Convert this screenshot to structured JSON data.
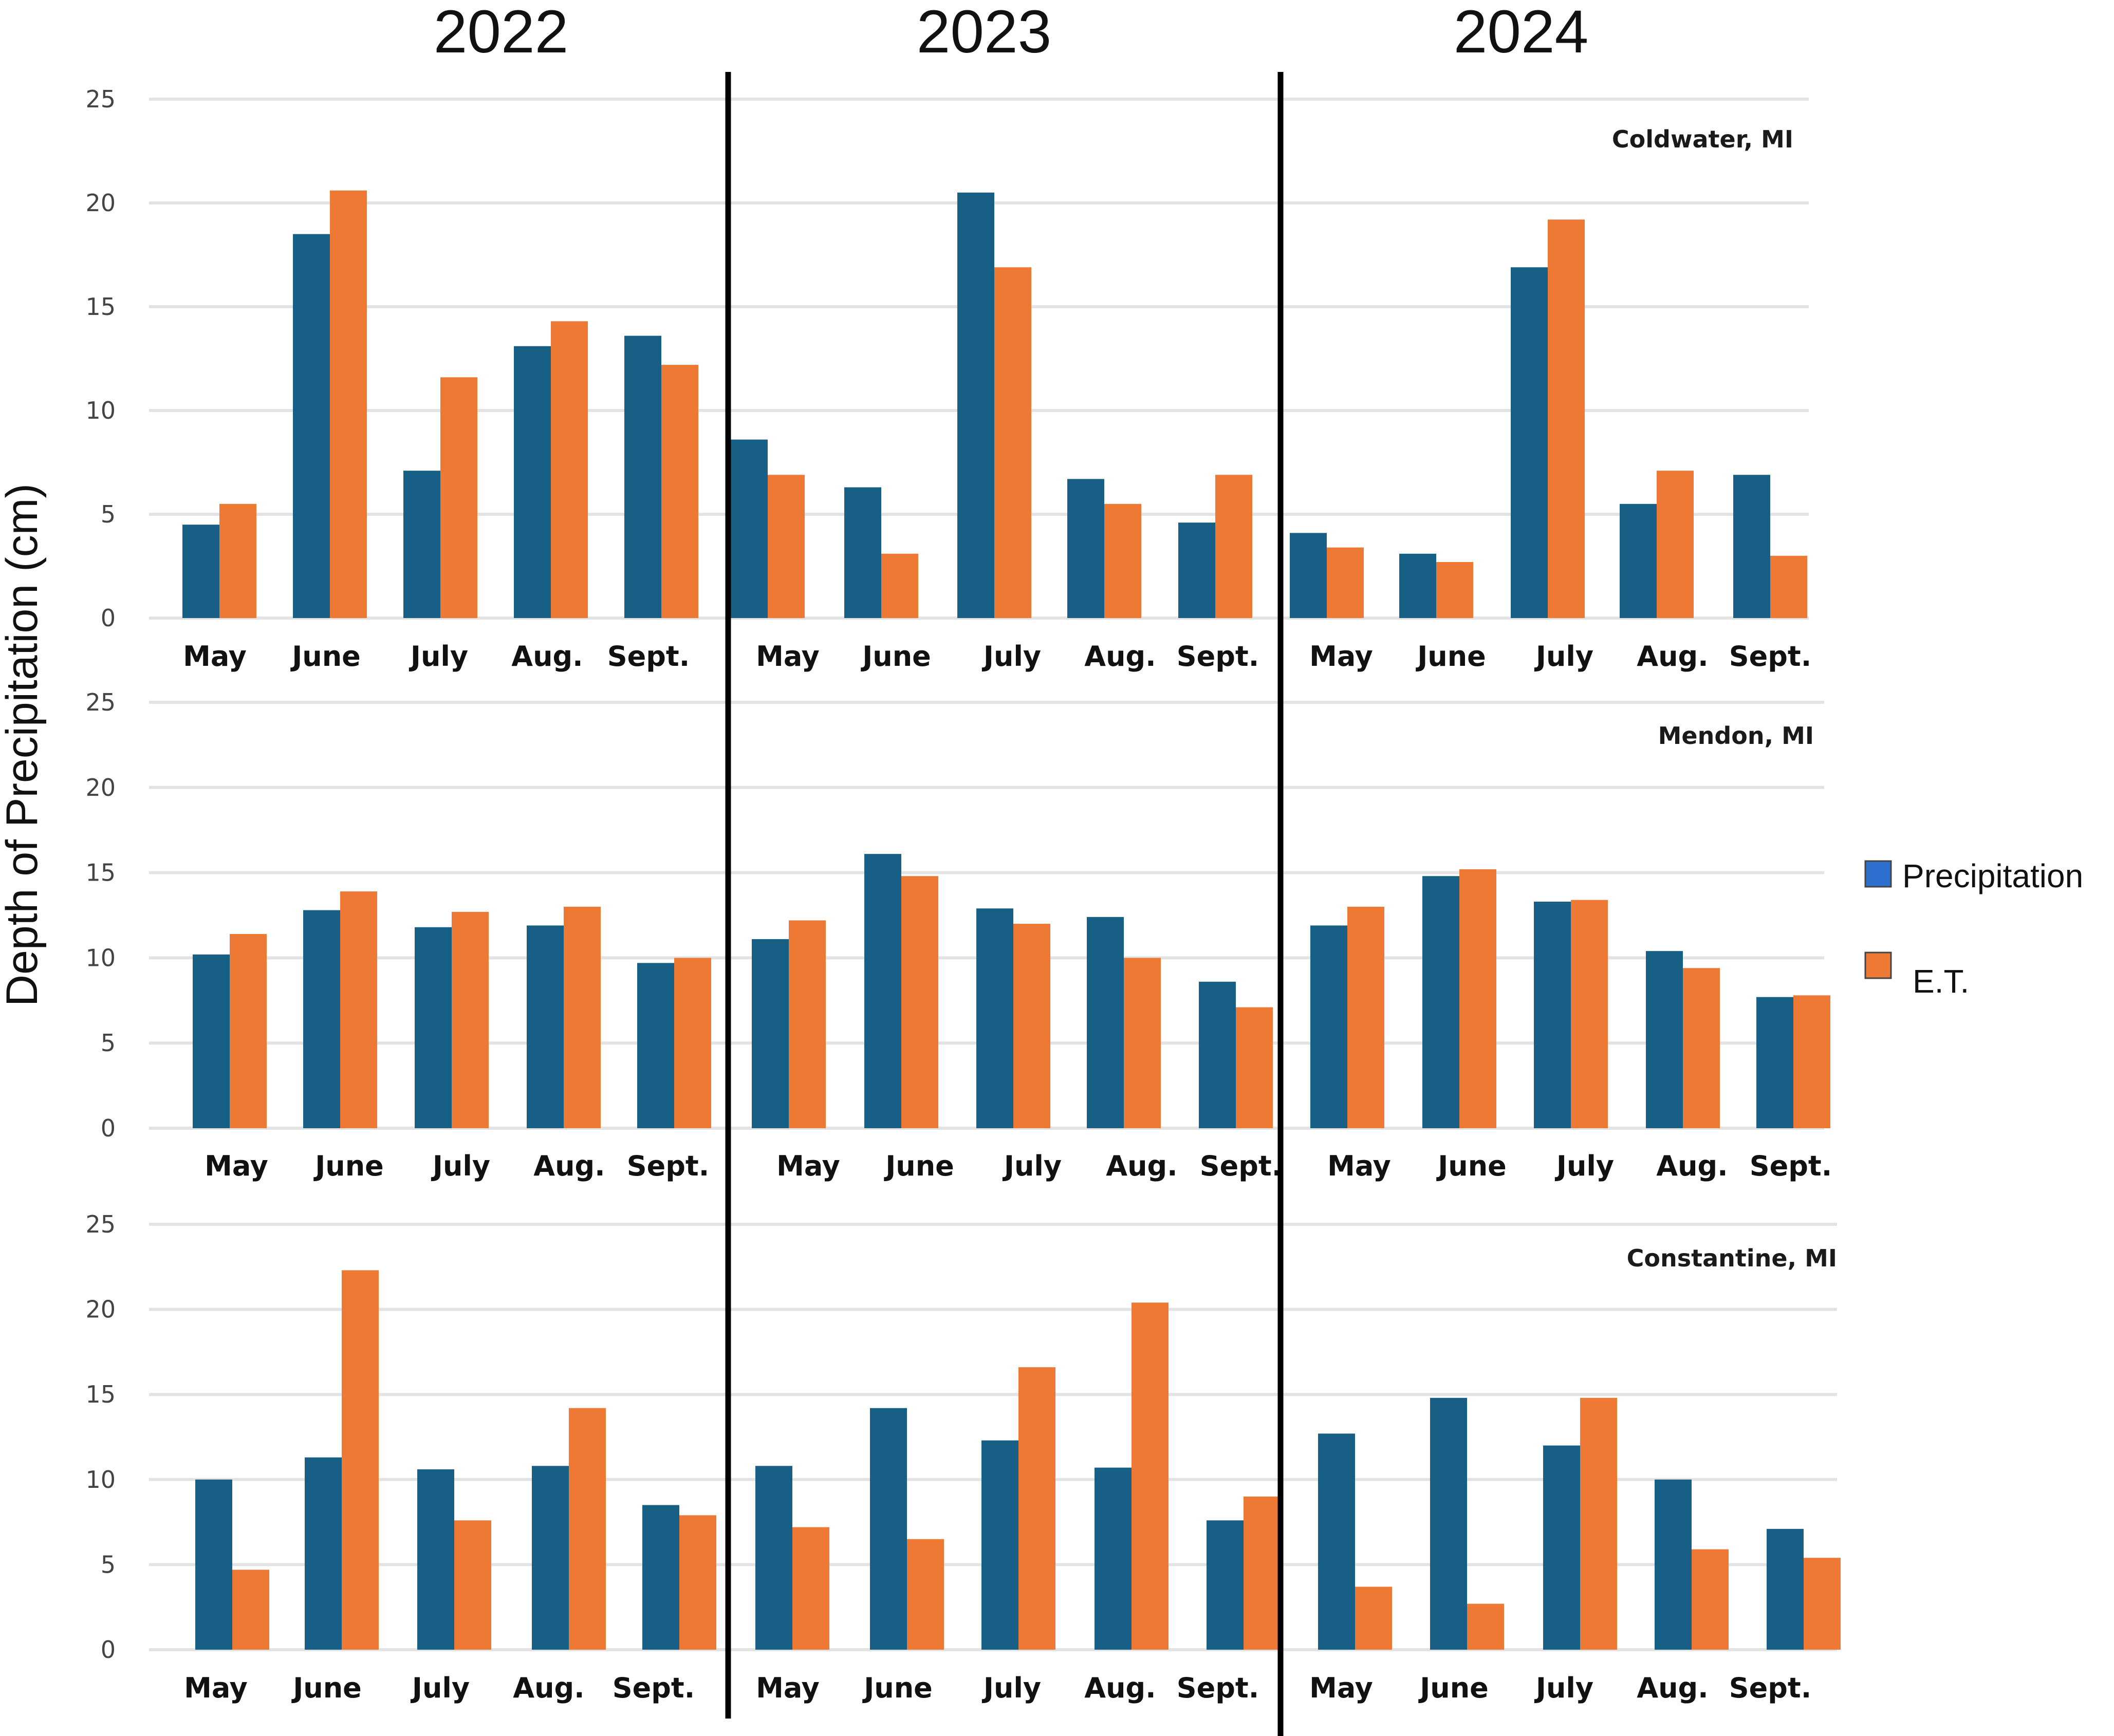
{
  "chart_data": {
    "type": "bar",
    "ylabel": "Depth of Precipitation (cm)",
    "years": [
      "2022",
      "2023",
      "2024"
    ],
    "categories": [
      "May",
      "June",
      "July",
      "Aug.",
      "Sept."
    ],
    "ylim": [
      0,
      25
    ],
    "yticks": [
      0,
      5,
      10,
      15,
      20,
      25
    ],
    "legend": [
      {
        "name": "Precipitation",
        "color": "#2f6fd0"
      },
      {
        "name": "E.T.",
        "color": "#ee7935"
      }
    ],
    "series_colors": {
      "Precipitation": "#175f85",
      "E.T.": "#ee7935"
    },
    "panels": [
      {
        "location": "Coldwater, MI",
        "years": [
          {
            "year": "2022",
            "precipitation": [
              4.5,
              18.5,
              7.1,
              13.1,
              13.6
            ],
            "et": [
              5.5,
              20.6,
              11.6,
              14.3,
              12.2
            ]
          },
          {
            "year": "2023",
            "precipitation": [
              8.6,
              6.3,
              20.5,
              6.7,
              4.6
            ],
            "et": [
              6.9,
              3.1,
              16.9,
              5.5,
              6.9
            ]
          },
          {
            "year": "2024",
            "precipitation": [
              4.1,
              3.1,
              16.9,
              5.5,
              6.9
            ],
            "et": [
              3.4,
              2.7,
              19.2,
              7.1,
              3.0
            ]
          }
        ]
      },
      {
        "location": "Mendon, MI",
        "years": [
          {
            "year": "2022",
            "precipitation": [
              10.2,
              12.8,
              11.8,
              11.9,
              9.7
            ],
            "et": [
              11.4,
              13.9,
              12.7,
              13.0,
              10.0
            ]
          },
          {
            "year": "2023",
            "precipitation": [
              11.1,
              16.1,
              12.9,
              12.4,
              8.6
            ],
            "et": [
              12.2,
              14.8,
              12.0,
              10.0,
              7.1
            ]
          },
          {
            "year": "2024",
            "precipitation": [
              11.9,
              14.8,
              13.3,
              10.4,
              7.7
            ],
            "et": [
              13.0,
              15.2,
              13.4,
              9.4,
              7.8
            ]
          }
        ]
      },
      {
        "location": "Constantine, MI",
        "years": [
          {
            "year": "2022",
            "precipitation": [
              10.0,
              11.3,
              10.6,
              10.8,
              8.5
            ],
            "et": [
              4.7,
              22.3,
              7.6,
              14.2,
              7.9
            ]
          },
          {
            "year": "2023",
            "precipitation": [
              10.8,
              14.2,
              12.3,
              10.7,
              7.6
            ],
            "et": [
              7.2,
              6.5,
              16.6,
              20.4,
              9.0
            ]
          },
          {
            "year": "2024",
            "precipitation": [
              12.7,
              14.8,
              12.0,
              10.0,
              7.1
            ],
            "et": [
              3.7,
              2.7,
              14.8,
              5.9,
              5.4
            ]
          }
        ]
      }
    ]
  }
}
